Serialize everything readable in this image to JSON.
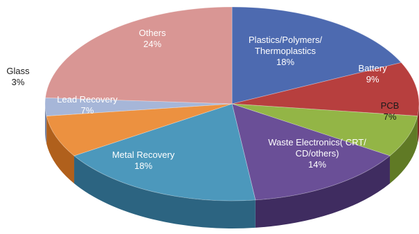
{
  "chart_data": {
    "type": "pie",
    "title": "",
    "slices": [
      {
        "label": "Plastics/Polymers/Thermoplastics",
        "lines": [
          "Plastics/Polymers/",
          "Thermoplastics"
        ],
        "value": 18,
        "value_label": "18%",
        "color": "#4d6ab0",
        "side": "#2d4580",
        "text_color": "#ffffff"
      },
      {
        "label": "Battery",
        "lines": [
          "Battery"
        ],
        "value": 9,
        "value_label": "9%",
        "color": "#b73f3e",
        "side": "#7f2524",
        "text_color": "#ffffff"
      },
      {
        "label": "PCB",
        "lines": [
          "PCB"
        ],
        "value": 7,
        "value_label": "7%",
        "color": "#93b546",
        "side": "#607a25",
        "text_color": "#1a1a1a"
      },
      {
        "label": "Waste Electronics( CRT/CD/others)",
        "lines": [
          "Waste Electronics( CRT/",
          "CD/others)"
        ],
        "value": 14,
        "value_label": "14%",
        "color": "#6a4f97",
        "side": "#3f2c60",
        "text_color": "#ffffff"
      },
      {
        "label": "Metal Recovery",
        "lines": [
          "Metal Recovery"
        ],
        "value": 18,
        "value_label": "18%",
        "color": "#4c98bc",
        "side": "#2c6481",
        "text_color": "#ffffff"
      },
      {
        "label": "Lead Recovery",
        "lines": [
          "Lead Recovery"
        ],
        "value": 7,
        "value_label": "7%",
        "color": "#ec9140",
        "side": "#b0601c",
        "text_color": "#ffffff"
      },
      {
        "label": "Glass",
        "lines": [
          "Glass"
        ],
        "value": 3,
        "value_label": "3%",
        "color": "#a6b6d8",
        "side": "#7383a6",
        "text_color": "#1a1a1a"
      },
      {
        "label": "Others",
        "lines": [
          "Others"
        ],
        "value": 24,
        "value_label": "24%",
        "color": "#d99694",
        "side": "#a86462",
        "text_color": "#ffffff"
      }
    ],
    "start_angle_deg": 90,
    "direction": "clockwise",
    "style": "3d-pie",
    "legend": "none",
    "background": "#ffffff"
  }
}
